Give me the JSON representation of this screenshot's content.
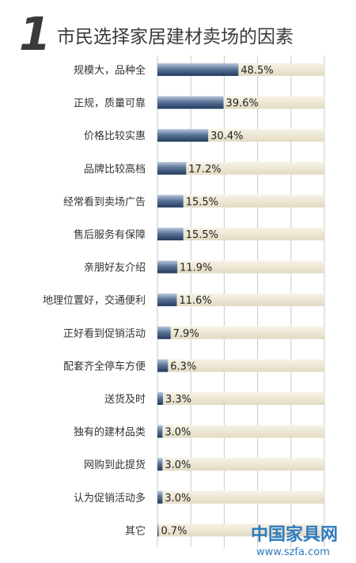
{
  "chart_data": {
    "type": "bar",
    "orientation": "horizontal",
    "title_number": "1",
    "title": "市民选择家居建材卖场的因素",
    "categories": [
      "规模大，品种全",
      "正规，质量可靠",
      "价格比较实惠",
      "品牌比较高档",
      "经常看到卖场广告",
      "售后服务有保障",
      "亲朋好友介绍",
      "地理位置好，交通便利",
      "正好看到促销活动",
      "配套齐全停车方便",
      "送货及时",
      "独有的建材品类",
      "网购到此提货",
      "认为促销活动多",
      "其它"
    ],
    "values": [
      48.5,
      39.6,
      30.4,
      17.2,
      15.5,
      15.5,
      11.9,
      11.6,
      7.9,
      6.3,
      3.3,
      3.0,
      3.0,
      3.0,
      0.7
    ],
    "value_labels": [
      "48.5%",
      "39.6%",
      "30.4%",
      "17.2%",
      "15.5%",
      "15.5%",
      "11.9%",
      "11.6%",
      "7.9%",
      "6.3%",
      "3.3%",
      "3.0%",
      "3.0%",
      "3.0%",
      "0.7%"
    ],
    "xlim": [
      0,
      100
    ],
    "grid": true,
    "colors": {
      "bar": "#3d5a80",
      "track": "#ece6d4",
      "title": "#3a3a3a"
    }
  },
  "watermark": {
    "name": "中国家具网",
    "url": "www.szfa.com",
    "color": "#2e7bbf"
  }
}
